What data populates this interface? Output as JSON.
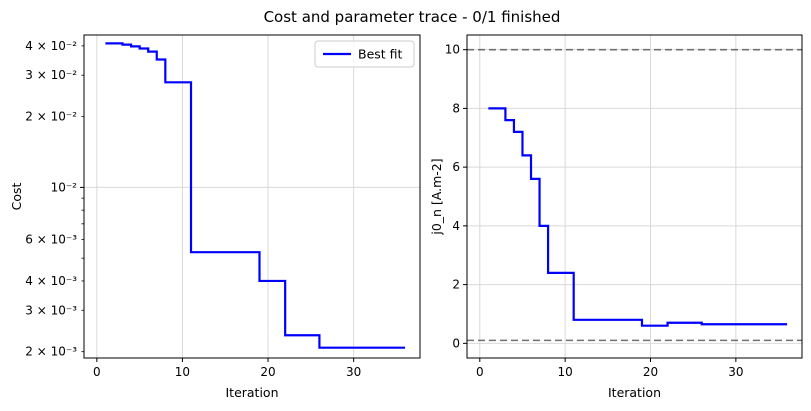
{
  "figure": {
    "title": "Cost and parameter trace - 0/1 finished",
    "colors": {
      "series": "#0000ff",
      "grid": "#d9d9d9",
      "bound": "#707070",
      "axis": "#000000"
    }
  },
  "chart_data": [
    {
      "type": "line",
      "step": "post",
      "scale_y": "log",
      "grid": true,
      "legend_position": "top-right",
      "xlabel": "Iteration",
      "ylabel": "Cost",
      "xlim": [
        -1.5,
        37.75
      ],
      "ylim": [
        0.00188,
        0.0445
      ],
      "x_ticks": [
        0,
        10,
        20,
        30
      ],
      "x_tick_labels": [
        "0",
        "10",
        "20",
        "30"
      ],
      "y_major_ticks": [
        0.01
      ],
      "y_major_tick_labels": [
        "10⁻²"
      ],
      "y_minor_ticks": [
        0.002,
        0.003,
        0.004,
        0.006,
        0.02,
        0.03,
        0.04
      ],
      "y_minor_tick_labels": [
        "2 × 10⁻³",
        "3 × 10⁻³",
        "4 × 10⁻³",
        "6 × 10⁻³",
        "2 × 10⁻²",
        "3 × 10⁻²",
        "4 × 10⁻²"
      ],
      "series": [
        {
          "name": "Best fit",
          "x": [
            1,
            3,
            4,
            5,
            6,
            7,
            8,
            11,
            19,
            22,
            26,
            36
          ],
          "y": [
            0.041,
            0.0405,
            0.0398,
            0.039,
            0.0378,
            0.035,
            0.028,
            0.0053,
            0.004,
            0.00235,
            0.00208,
            0.00208
          ]
        }
      ]
    },
    {
      "type": "line",
      "step": "post",
      "scale_y": "linear",
      "grid": true,
      "xlabel": "Iteration",
      "ylabel": "j0_n [A.m-2]",
      "xlim": [
        -1.5,
        37.75
      ],
      "ylim": [
        -0.5,
        10.5
      ],
      "x_ticks": [
        0,
        10,
        20,
        30
      ],
      "x_tick_labels": [
        "0",
        "10",
        "20",
        "30"
      ],
      "y_ticks": [
        0,
        2,
        4,
        6,
        8,
        10
      ],
      "y_tick_labels": [
        "0",
        "2",
        "4",
        "6",
        "8",
        "10"
      ],
      "bounds": [
        0.1,
        10
      ],
      "series": [
        {
          "name": "",
          "x": [
            1,
            3,
            4,
            5,
            6,
            7,
            8,
            11,
            19,
            22,
            26,
            36
          ],
          "y": [
            8.0,
            7.6,
            7.2,
            6.4,
            5.6,
            4.0,
            2.4,
            0.8,
            0.6,
            0.7,
            0.65,
            0.65
          ]
        }
      ]
    }
  ]
}
